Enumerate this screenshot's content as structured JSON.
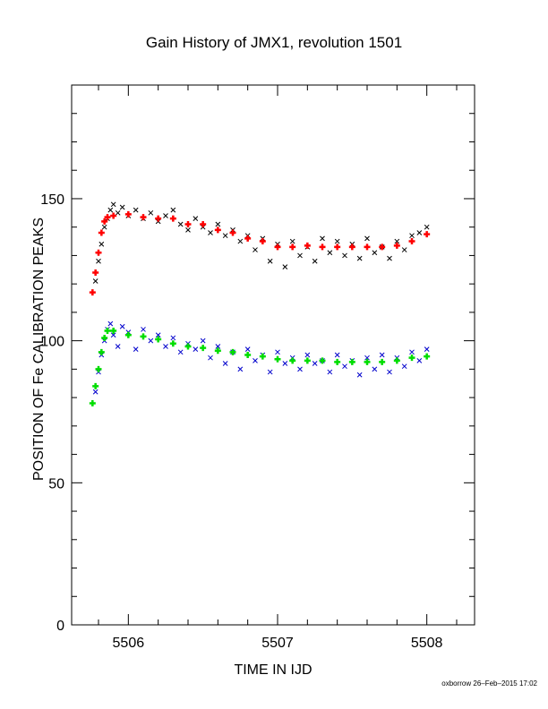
{
  "title": "Gain History of JMX1, revolution 1501",
  "footer": "oxborrow 26–Feb–2015 17:02",
  "chart_data": {
    "type": "scatter",
    "title": "Gain History of JMX1, revolution 1501",
    "xlabel": "TIME IN IJD",
    "ylabel": "POSITION OF Fe CALIBRATION PEAKS",
    "xlim": [
      5505.62,
      5508.32
    ],
    "ylim": [
      0,
      190
    ],
    "xticks": [
      5506,
      5507,
      5508
    ],
    "yticks": [
      0,
      50,
      100,
      150
    ],
    "grid": false,
    "series": [
      {
        "marker": "x",
        "color": "#000000",
        "points": [
          [
            5505.78,
            121
          ],
          [
            5505.8,
            128
          ],
          [
            5505.82,
            134
          ],
          [
            5505.84,
            140
          ],
          [
            5505.86,
            143
          ],
          [
            5505.88,
            146
          ],
          [
            5505.9,
            148
          ],
          [
            5505.93,
            145
          ],
          [
            5505.96,
            147
          ],
          [
            5506.0,
            144
          ],
          [
            5506.05,
            146
          ],
          [
            5506.1,
            143
          ],
          [
            5506.15,
            145
          ],
          [
            5506.2,
            142
          ],
          [
            5506.25,
            144
          ],
          [
            5506.3,
            146
          ],
          [
            5506.35,
            141
          ],
          [
            5506.4,
            139
          ],
          [
            5506.45,
            143
          ],
          [
            5506.5,
            140
          ],
          [
            5506.55,
            138
          ],
          [
            5506.6,
            141
          ],
          [
            5506.65,
            137
          ],
          [
            5506.7,
            139
          ],
          [
            5506.75,
            135
          ],
          [
            5506.8,
            137
          ],
          [
            5506.85,
            132
          ],
          [
            5506.9,
            136
          ],
          [
            5506.95,
            128
          ],
          [
            5507.0,
            134
          ],
          [
            5507.05,
            126
          ],
          [
            5507.1,
            135
          ],
          [
            5507.15,
            130
          ],
          [
            5507.2,
            133
          ],
          [
            5507.25,
            128
          ],
          [
            5507.3,
            136
          ],
          [
            5507.35,
            131
          ],
          [
            5507.4,
            135
          ],
          [
            5507.45,
            130
          ],
          [
            5507.5,
            134
          ],
          [
            5507.55,
            129
          ],
          [
            5507.6,
            136
          ],
          [
            5507.65,
            131
          ],
          [
            5507.7,
            133
          ],
          [
            5507.75,
            129
          ],
          [
            5507.8,
            135
          ],
          [
            5507.85,
            132
          ],
          [
            5507.9,
            137
          ],
          [
            5507.95,
            138
          ],
          [
            5508.0,
            140
          ]
        ]
      },
      {
        "marker": "plus",
        "color": "#ff0000",
        "points": [
          [
            5505.76,
            117
          ],
          [
            5505.78,
            124
          ],
          [
            5505.8,
            131
          ],
          [
            5505.82,
            138
          ],
          [
            5505.84,
            142
          ],
          [
            5505.86,
            143.5
          ],
          [
            5505.9,
            144
          ],
          [
            5506.0,
            144.5
          ],
          [
            5506.1,
            143.5
          ],
          [
            5506.2,
            143
          ],
          [
            5506.3,
            143
          ],
          [
            5506.4,
            141
          ],
          [
            5506.5,
            141
          ],
          [
            5506.6,
            139
          ],
          [
            5506.7,
            138
          ],
          [
            5506.8,
            136
          ],
          [
            5506.9,
            135
          ],
          [
            5507.0,
            133
          ],
          [
            5507.1,
            133
          ],
          [
            5507.2,
            133.5
          ],
          [
            5507.3,
            133
          ],
          [
            5507.4,
            133
          ],
          [
            5507.5,
            133
          ],
          [
            5507.6,
            133
          ],
          [
            5507.7,
            133
          ],
          [
            5507.8,
            133.5
          ],
          [
            5507.9,
            135
          ],
          [
            5508.0,
            137.5
          ]
        ]
      },
      {
        "marker": "x",
        "color": "#0000cc",
        "points": [
          [
            5505.78,
            82
          ],
          [
            5505.8,
            89
          ],
          [
            5505.82,
            95
          ],
          [
            5505.84,
            100
          ],
          [
            5505.86,
            104
          ],
          [
            5505.88,
            106
          ],
          [
            5505.9,
            102
          ],
          [
            5505.93,
            98
          ],
          [
            5505.96,
            105
          ],
          [
            5506.0,
            103
          ],
          [
            5506.05,
            97
          ],
          [
            5506.1,
            104
          ],
          [
            5506.15,
            100
          ],
          [
            5506.2,
            102
          ],
          [
            5506.25,
            98
          ],
          [
            5506.3,
            101
          ],
          [
            5506.35,
            96
          ],
          [
            5506.4,
            99
          ],
          [
            5506.45,
            97
          ],
          [
            5506.5,
            100
          ],
          [
            5506.55,
            94
          ],
          [
            5506.6,
            98
          ],
          [
            5506.65,
            92
          ],
          [
            5506.7,
            96
          ],
          [
            5506.75,
            90
          ],
          [
            5506.8,
            97
          ],
          [
            5506.85,
            93
          ],
          [
            5506.9,
            95
          ],
          [
            5506.95,
            89
          ],
          [
            5507.0,
            96
          ],
          [
            5507.05,
            92
          ],
          [
            5507.1,
            94
          ],
          [
            5507.15,
            90
          ],
          [
            5507.2,
            95
          ],
          [
            5507.25,
            92
          ],
          [
            5507.3,
            93
          ],
          [
            5507.35,
            89
          ],
          [
            5507.4,
            95
          ],
          [
            5507.45,
            91
          ],
          [
            5507.5,
            93
          ],
          [
            5507.55,
            88
          ],
          [
            5507.6,
            94
          ],
          [
            5507.65,
            90
          ],
          [
            5507.7,
            95
          ],
          [
            5507.75,
            89
          ],
          [
            5507.8,
            94
          ],
          [
            5507.85,
            91
          ],
          [
            5507.9,
            96
          ],
          [
            5507.95,
            93
          ],
          [
            5508.0,
            97
          ]
        ]
      },
      {
        "marker": "plus",
        "color": "#00dd00",
        "points": [
          [
            5505.76,
            78
          ],
          [
            5505.78,
            84
          ],
          [
            5505.8,
            90
          ],
          [
            5505.82,
            96
          ],
          [
            5505.84,
            101
          ],
          [
            5505.86,
            103.5
          ],
          [
            5505.9,
            103.5
          ],
          [
            5506.0,
            102
          ],
          [
            5506.1,
            101.5
          ],
          [
            5506.2,
            100.5
          ],
          [
            5506.3,
            99
          ],
          [
            5506.4,
            98
          ],
          [
            5506.5,
            97.5
          ],
          [
            5506.6,
            96.5
          ],
          [
            5506.7,
            96
          ],
          [
            5506.8,
            95
          ],
          [
            5506.9,
            94.5
          ],
          [
            5507.0,
            93.5
          ],
          [
            5507.1,
            93
          ],
          [
            5507.2,
            93
          ],
          [
            5507.3,
            93
          ],
          [
            5507.4,
            92.5
          ],
          [
            5507.5,
            92.5
          ],
          [
            5507.6,
            92.5
          ],
          [
            5507.7,
            92.5
          ],
          [
            5507.8,
            93
          ],
          [
            5507.9,
            94
          ],
          [
            5508.0,
            94.5
          ]
        ]
      }
    ]
  }
}
